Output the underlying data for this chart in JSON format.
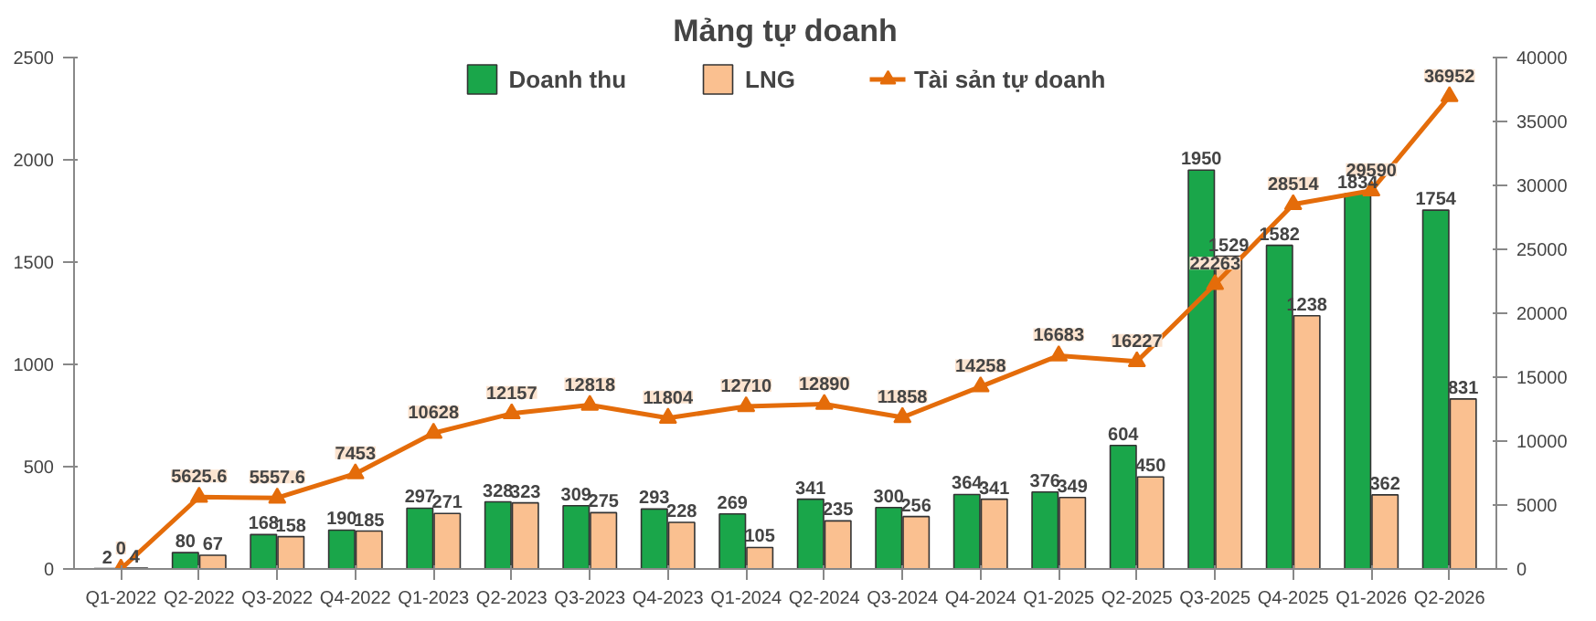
{
  "chart_data": {
    "type": "bar",
    "title": "Mảng tự doanh",
    "categories": [
      "Q1-2022",
      "Q2-2022",
      "Q3-2022",
      "Q4-2022",
      "Q1-2023",
      "Q2-2023",
      "Q3-2023",
      "Q4-2023",
      "Q1-2024",
      "Q2-2024",
      "Q3-2024",
      "Q4-2024",
      "Q1-2025",
      "Q2-2025",
      "Q3-2025",
      "Q4-2025",
      "Q1-2026",
      "Q2-2026"
    ],
    "series": [
      {
        "name": "Doanh thu",
        "color": "#1aa64a",
        "values": [
          2,
          80,
          168,
          190,
          297,
          328,
          309,
          293,
          269,
          341,
          300,
          364,
          376,
          604,
          1950,
          1582,
          1834,
          1754
        ]
      },
      {
        "name": "LNG",
        "color": "#fac090",
        "values": [
          4,
          67,
          158,
          185,
          271,
          323,
          275,
          228,
          105,
          235,
          256,
          341,
          349,
          450,
          1529,
          1238,
          362,
          831
        ]
      },
      {
        "name": "Tài sản tự doanh",
        "type": "line",
        "axis": "y2",
        "color": "#e46c0a",
        "marker": "triangle",
        "values": [
          0,
          5625.6,
          5557.6,
          7453,
          10628,
          12157,
          12818,
          11804,
          12710,
          12890,
          11858,
          14258,
          16683,
          16227,
          22263,
          28514,
          29590,
          36952
        ]
      }
    ],
    "ylim": [
      0,
      2500
    ],
    "yticks": [
      0,
      500,
      1000,
      1500,
      2000,
      2500
    ],
    "y2lim": [
      0,
      40000
    ],
    "y2ticks": [
      0,
      5000,
      10000,
      15000,
      20000,
      25000,
      30000,
      35000,
      40000
    ],
    "data_labels": true,
    "legend": "top",
    "grid": false
  }
}
